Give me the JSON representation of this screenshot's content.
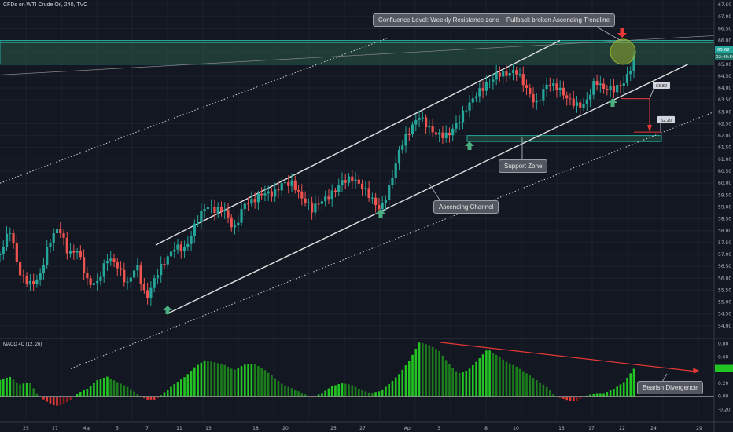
{
  "header": {
    "title": "CFDs on WTI Crude Oil, 240, TVC",
    "macd_label": "MACD 4C (12, 26)"
  },
  "annotations": {
    "confluence": "Confluence Level: Weekly Resistance zone + Pullback broken Ascending Trendline",
    "support_zone": "Support Zone",
    "ascending_channel": "Ascending Channel",
    "bearish_divergence": "Bearish Divergence",
    "target1": "63.80",
    "target2": "62.20"
  },
  "price_tags": {
    "last_price": "65.62",
    "countdown": "02:40:59"
  },
  "colors": {
    "background": "#131722",
    "up": "#26a69a",
    "down": "#ef5350",
    "zone_border": "#26a69a",
    "zone_fill": "#2a5a46",
    "arrow_green": "#4caf80",
    "arrow_red": "#e53935",
    "circle": "#9bb531"
  },
  "chart_data": [
    {
      "type": "candlestick",
      "title": "",
      "y_axis_side": "right",
      "ylim": [
        53.5,
        67.7
      ],
      "y_ticks": [
        "54.00",
        "54.50",
        "55.00",
        "55.50",
        "56.00",
        "56.50",
        "57.00",
        "57.50",
        "58.00",
        "58.50",
        "59.00",
        "59.50",
        "60.00",
        "60.50",
        "61.00",
        "61.50",
        "62.00",
        "62.50",
        "63.00",
        "63.50",
        "64.00",
        "64.50",
        "65.00",
        "65.50",
        "66.00",
        "66.50",
        "67.00",
        "67.50"
      ],
      "x_tick_labels": [
        "25",
        "27",
        "Mar",
        "5",
        "7",
        "11",
        "13",
        "18",
        "20",
        "25",
        "27",
        "Apr",
        "3",
        "8",
        "10",
        "15",
        "17",
        "22",
        "24",
        "29"
      ],
      "close_path": [
        57.0,
        57.8,
        56.0,
        55.9,
        56.3,
        57.5,
        57.9,
        56.8,
        57.3,
        56.1,
        55.9,
        56.6,
        56.3,
        55.8,
        56.9,
        55.2,
        55.9,
        56.5,
        57.4,
        57.5,
        58.4,
        58.8,
        58.6,
        58.9,
        58.3,
        59.3,
        59.1,
        59.3,
        59.5,
        60.3,
        60.2,
        59.2,
        58.6,
        59.2,
        59.8,
        60.3,
        60.1,
        59.6,
        59.3,
        59.1,
        60.2,
        61.4,
        61.9,
        62.7,
        62.5,
        62.3,
        62.0,
        62.3,
        63.1,
        64.0,
        64.5,
        64.6,
        64.3,
        64.5,
        64.1,
        63.6,
        64.2,
        63.8,
        63.4,
        63.4,
        63.6,
        64.4,
        63.7,
        63.7,
        64.3,
        65.5
      ],
      "resistance_zone": [
        65.0,
        66.0
      ],
      "support_zone": [
        61.75,
        62.0
      ],
      "channel_upper": {
        "from_price": 57.4,
        "to_price": 66.0
      },
      "channel_lower": {
        "from_price": 54.5,
        "to_price": 65.0
      },
      "dotted_lower": {
        "from_price": 52.2,
        "to_price": 63.0
      },
      "targets": [
        63.8,
        62.2
      ]
    },
    {
      "type": "bar",
      "title": "MACD 4C (12, 26)",
      "ylim": [
        -0.35,
        0.88
      ],
      "y_ticks": [
        "0.80",
        "0.60",
        "0.40",
        "0.20",
        "0.00",
        "-0.20"
      ],
      "values": [
        0.25,
        0.3,
        0.18,
        0.22,
        0.0,
        -0.1,
        -0.15,
        -0.08,
        0.05,
        0.12,
        0.25,
        0.3,
        0.22,
        0.15,
        0.05,
        -0.05,
        -0.05,
        0.08,
        0.2,
        0.3,
        0.45,
        0.55,
        0.52,
        0.48,
        0.4,
        0.48,
        0.5,
        0.42,
        0.3,
        0.18,
        0.12,
        0.05,
        -0.02,
        0.05,
        0.15,
        0.2,
        0.18,
        0.1,
        0.05,
        0.08,
        0.2,
        0.35,
        0.55,
        0.82,
        0.78,
        0.7,
        0.5,
        0.35,
        0.4,
        0.55,
        0.72,
        0.62,
        0.52,
        0.45,
        0.35,
        0.25,
        0.15,
        0.0,
        -0.05,
        -0.08,
        0.0,
        0.05,
        0.05,
        0.12,
        0.22,
        0.42
      ]
    }
  ]
}
